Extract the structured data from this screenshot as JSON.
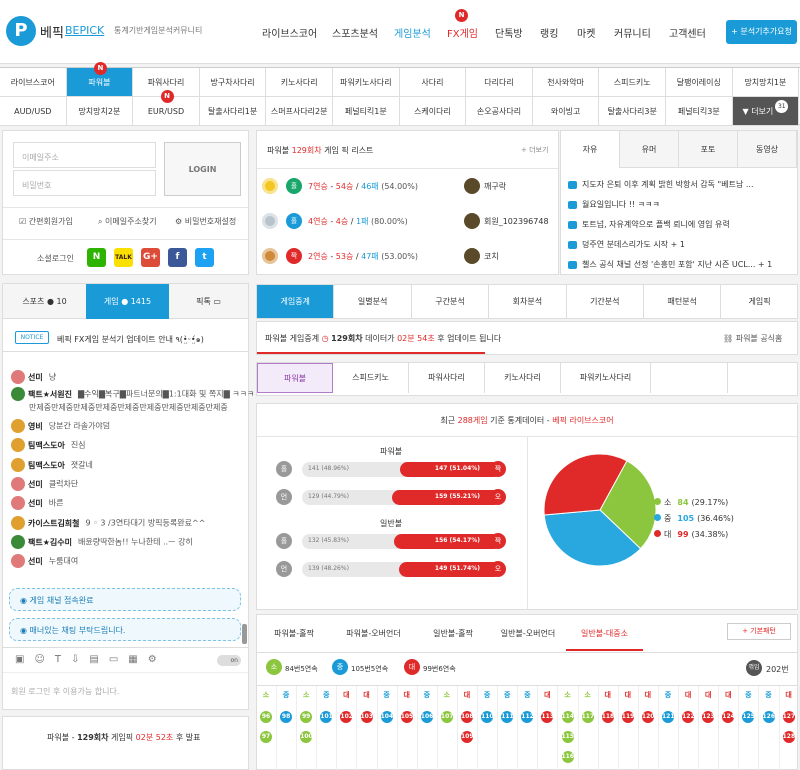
{
  "header": {
    "logo_letter": "P",
    "brand_ko": "베픽",
    "brand_en": "BEPICK",
    "tagline": "통계기반게임분석커뮤니티",
    "nav": [
      {
        "label": "라이브스코어"
      },
      {
        "label": "스포츠분석"
      },
      {
        "label": "게임분석",
        "active": true
      },
      {
        "label": "FX게임",
        "badge": "N"
      },
      {
        "label": "단톡방"
      },
      {
        "label": "랭킹"
      },
      {
        "label": "마켓"
      },
      {
        "label": "커뮤니티"
      },
      {
        "label": "고객센터"
      }
    ],
    "request_button": "+ 분석기추가요청"
  },
  "game_tabs": {
    "row1": [
      "라이브스코어",
      "파워볼",
      "파워사다리",
      "방구차사다리",
      "키노사다리",
      "파워키노사다리",
      "사다리",
      "다리다리",
      "천사와악마",
      "스피드키노",
      "달팽이레이싱",
      "망치망치1분"
    ],
    "row2": [
      "AUD/USD",
      "망치망치2분",
      "EUR/USD",
      "탈출사다리1분",
      "스머프사다리2분",
      "페널티킥1분",
      "스케이다리",
      "손오공사다리",
      "와이빙고",
      "탈출사다리3분",
      "페널티킥3분",
      "▼ 더보기"
    ],
    "more_count": "31",
    "badge_n": "N"
  },
  "login": {
    "email_placeholder": "이메일주소",
    "password_placeholder": "비밀번호",
    "login_button": "LOGIN",
    "links": [
      "간편회원가입",
      "이메일주소찾기",
      "비밀번호재설정"
    ],
    "social_label": "소셜로그인",
    "social": [
      "N",
      "TALK",
      "G+",
      "f",
      "t"
    ]
  },
  "chat": {
    "tabs": [
      {
        "label": "스포츠",
        "count": "10"
      },
      {
        "label": "게임",
        "count": "1415"
      },
      {
        "label": "픽톡",
        "count": ""
      }
    ],
    "notice_badge": "NOTICE",
    "notice_text": "베픽 FX게임 분석기 업데이트 안내 ٩(•̤̀ᵕ•̤́๑)",
    "messages": [
      {
        "name": "선미",
        "text": "냥",
        "color": "#e07a7a"
      },
      {
        "name": "팩트★서원진",
        "text": "▇수익▇복구▇파트너문의▇1:1대화 및 쪽지▇ ㅋㅋㅋ",
        "color": "#3a8a3a"
      },
      {
        "name": "",
        "text": "만제중만제중만제중만제중만제중만제중만제중만제중만제중",
        "color": ""
      },
      {
        "name": "영비",
        "text": "당분간 라솔가야덤",
        "color": "#e0a030"
      },
      {
        "name": "팀맥스도아",
        "text": "진심",
        "color": "#e0a030"
      },
      {
        "name": "팀맥스도아",
        "text": "졋갈네",
        "color": "#e0a030"
      },
      {
        "name": "선미",
        "text": "클럭차단",
        "color": "#e07a7a"
      },
      {
        "name": "선미",
        "text": "바른",
        "color": "#e07a7a"
      },
      {
        "name": "카이스트김희철",
        "text": "9 ◦ 3 /3연타대기 방픽등록완료^^",
        "color": "#e0a030"
      },
      {
        "name": "팩트★김수미",
        "text": "배윤량딱한놈!! 누나한테 ..ㅡ 강히",
        "color": "#3a8a3a"
      },
      {
        "name": "선미",
        "text": "누룸대여",
        "color": "#e07a7a"
      }
    ],
    "system_messages": [
      "게임 채널 접속완료",
      "매너있는 채팅 부탁드립니다."
    ],
    "toggle_label": "on",
    "input_placeholder": "회원 로그인 후 이용가능 합니다.",
    "bottom_prefix": "파워볼 - ",
    "bottom_round": "129회차",
    "bottom_mid": " 게임픽 ",
    "bottom_time": "02분 52초",
    "bottom_suffix": " 후 발표"
  },
  "pick_list": {
    "title_prefix": "파워볼 ",
    "title_round": "129회차",
    "title_suffix": " 게임 픽 리스트",
    "more": "+ 더보기",
    "rows": [
      {
        "pick": "홀",
        "pick_color": "#18a66a",
        "streak": "7연승",
        "wins": "54승",
        "losses": "46패",
        "rate": "(54.00%)",
        "user": "깨구락",
        "medal": "#f3c623"
      },
      {
        "pick": "홀",
        "pick_color": "#1a9bd7",
        "streak": "4연승",
        "wins": "4승",
        "losses": "1패",
        "rate": "(80.00%)",
        "user": "회원_102396748",
        "medal": "#b8c4cc"
      },
      {
        "pick": "짝",
        "pick_color": "#e02a2a",
        "streak": "2연승",
        "wins": "53승",
        "losses": "47패",
        "rate": "(53.00%)",
        "user": "코치",
        "medal": "#cf8a3a"
      }
    ]
  },
  "news": {
    "tabs": [
      "자유",
      "유머",
      "포토",
      "동영상"
    ],
    "items": [
      "지도자 은퇴 이후 계획 밝힌 박항서 감독 \"베트남 ...",
      "월요일입니다 !! ㅋㅋㅋ",
      "토트넘, 자유계약으로 플백 뢰니에 영입 유력",
      "덩주연 분데스리가도 시작 + 1",
      "첼스 공식 채널 선정 '손흥민 포함' 지난 시즌 UCL... + 1"
    ]
  },
  "content_tabs": [
    "게임중계",
    "일별분석",
    "구간분석",
    "회차분석",
    "기간분석",
    "패턴분석",
    "게임픽"
  ],
  "relay": {
    "prefix": "파워볼 게임중계",
    "round": "129회차",
    "mid": " 데이터가 ",
    "time": "02분 54초",
    "suffix": " 후 업데이트 됩니다",
    "official": "파워볼 공식홈"
  },
  "sub_tabs": [
    "파워볼",
    "스피드키노",
    "파워사다리",
    "키노사다리",
    "파워키노사다리"
  ],
  "stats": {
    "header_prefix": "최근 ",
    "header_count": "288게임",
    "header_mid": " 기준 통계데이터 - ",
    "header_brand": "베픽 라이브스코어",
    "groups": [
      {
        "title": "파워볼",
        "rows": [
          {
            "left_label": "홀",
            "left_text": "141 (48.96%)",
            "right_text": "147 (51.04%)",
            "right_label": "짝",
            "right_share": 0.5104
          },
          {
            "left_label": "언",
            "left_text": "129 (44.79%)",
            "right_text": "159 (55.21%)",
            "right_label": "오",
            "right_share": 0.5521
          }
        ]
      },
      {
        "title": "일반볼",
        "rows": [
          {
            "left_label": "홀",
            "left_text": "132 (45.83%)",
            "right_text": "156 (54.17%)",
            "right_label": "짝",
            "right_share": 0.5417
          },
          {
            "left_label": "언",
            "left_text": "139 (48.26%)",
            "right_text": "149 (51.74%)",
            "right_label": "오",
            "right_share": 0.5174
          }
        ]
      }
    ],
    "pie": [
      {
        "label": "소",
        "value": "84",
        "pct": "(29.17%)",
        "share": 0.2917,
        "color": "#8cc63f"
      },
      {
        "label": "중",
        "value": "105",
        "pct": "(36.46%)",
        "share": 0.3646,
        "color": "#29a8e0"
      },
      {
        "label": "대",
        "value": "99",
        "pct": "(34.38%)",
        "share": 0.3438,
        "color": "#e02a2a"
      }
    ]
  },
  "bottom": {
    "tabs": [
      "파워볼-홀짝",
      "파워볼-오버언더",
      "일반볼-홀짝",
      "일반볼-오버언더",
      "일반볼-대중소"
    ],
    "active_tab": 4,
    "pattern_button": "+ 기본패턴",
    "summary": [
      {
        "badge": "소",
        "text": "84번5연속",
        "color": "#8cc63f"
      },
      {
        "badge": "중",
        "text": "105번5연속",
        "color": "#1a9bd7"
      },
      {
        "badge": "대",
        "text": "99번6연속",
        "color": "#e02a2a"
      }
    ],
    "total_badge": "꺾임",
    "total": "202번",
    "columns": [
      {
        "h": "소",
        "v": [
          "96",
          "97"
        ]
      },
      {
        "h": "중",
        "v": [
          "98"
        ]
      },
      {
        "h": "소",
        "v": [
          "99",
          "100"
        ]
      },
      {
        "h": "중",
        "v": [
          "101"
        ]
      },
      {
        "h": "대",
        "v": [
          "102"
        ]
      },
      {
        "h": "대",
        "v": [
          "103"
        ]
      },
      {
        "h": "중",
        "v": [
          "104"
        ]
      },
      {
        "h": "대",
        "v": [
          "105"
        ]
      },
      {
        "h": "중",
        "v": [
          "106"
        ]
      },
      {
        "h": "소",
        "v": [
          "107"
        ]
      },
      {
        "h": "대",
        "v": [
          "108",
          "109"
        ]
      },
      {
        "h": "중",
        "v": [
          "110"
        ]
      },
      {
        "h": "중",
        "v": [
          "111"
        ]
      },
      {
        "h": "중",
        "v": [
          "112"
        ]
      },
      {
        "h": "대",
        "v": [
          "113"
        ]
      },
      {
        "h": "소",
        "v": [
          "114",
          "115",
          "116"
        ]
      },
      {
        "h": "소",
        "v": [
          "117"
        ]
      },
      {
        "h": "대",
        "v": [
          "118"
        ]
      },
      {
        "h": "대",
        "v": [
          "119"
        ]
      },
      {
        "h": "대",
        "v": [
          "120"
        ]
      },
      {
        "h": "중",
        "v": [
          "121"
        ]
      },
      {
        "h": "대",
        "v": [
          "122"
        ]
      },
      {
        "h": "대",
        "v": [
          "123"
        ]
      },
      {
        "h": "대",
        "v": [
          "124"
        ]
      },
      {
        "h": "중",
        "v": [
          "125"
        ]
      },
      {
        "h": "중",
        "v": [
          "126"
        ]
      },
      {
        "h": "대",
        "v": [
          "127",
          "128"
        ]
      }
    ]
  }
}
